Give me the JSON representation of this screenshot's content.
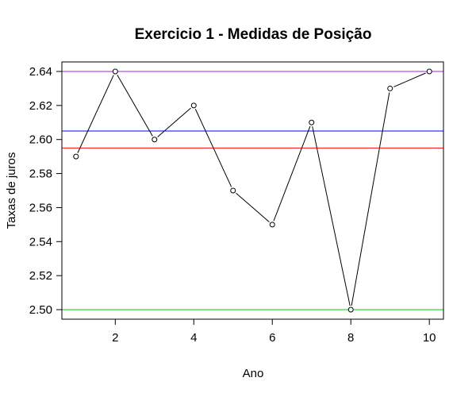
{
  "chart_data": {
    "type": "line",
    "title": "Exercicio 1 - Medidas de Posição",
    "xlabel": "Ano",
    "ylabel": "Taxas de juros",
    "x": [
      1,
      2,
      3,
      4,
      5,
      6,
      7,
      8,
      9,
      10
    ],
    "series": [
      {
        "values": [
          2.59,
          2.64,
          2.6,
          2.62,
          2.57,
          2.55,
          2.61,
          2.5,
          2.63,
          2.64
        ],
        "color": "#000000",
        "marker": "open-circle",
        "line": "b"
      }
    ],
    "reference_lines": [
      {
        "y": 2.64,
        "color": "#a020f0"
      },
      {
        "y": 2.605,
        "color": "#0000ff"
      },
      {
        "y": 2.595,
        "color": "#ff0000"
      },
      {
        "y": 2.5,
        "color": "#00cd00"
      }
    ],
    "xlim": [
      0.64,
      10.36
    ],
    "ylim": [
      2.4944,
      2.6456
    ],
    "x_ticks": [
      2,
      4,
      6,
      8,
      10
    ],
    "y_ticks": [
      2.5,
      2.52,
      2.54,
      2.56,
      2.58,
      2.6,
      2.62,
      2.64
    ],
    "y_tick_labels": [
      "2.50",
      "2.52",
      "2.54",
      "2.56",
      "2.58",
      "2.60",
      "2.62",
      "2.64"
    ],
    "grid": false,
    "legend": "none"
  }
}
